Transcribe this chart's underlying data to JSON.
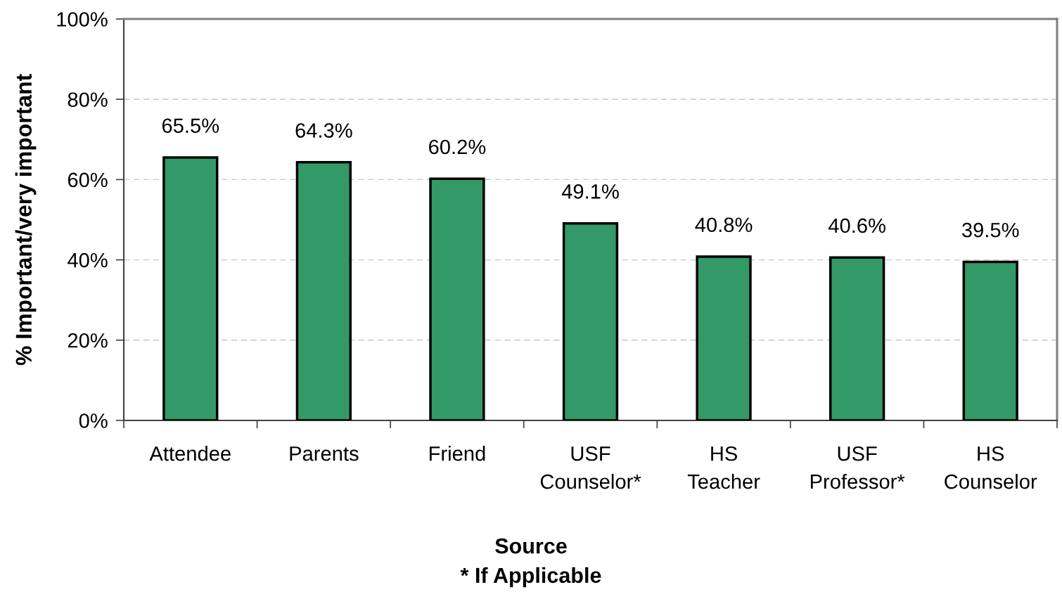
{
  "chart_data": {
    "type": "bar",
    "categories": [
      "Attendee",
      "Parents",
      "Friend",
      "USF\nCounselor*",
      "HS\nTeacher",
      "USF\nProfessor*",
      "HS\nCounselor"
    ],
    "values": [
      65.5,
      64.3,
      60.2,
      49.1,
      40.8,
      40.6,
      39.5
    ],
    "value_labels": [
      "65.5%",
      "64.3%",
      "60.2%",
      "49.1%",
      "40.8%",
      "40.6%",
      "39.5%"
    ],
    "color": "#339966",
    "xlabel": "Source\n* If Applicable",
    "ylabel": "% Important/very important",
    "ylim": [
      0,
      100
    ],
    "yticks": [
      {
        "value": 0,
        "label": "0%"
      },
      {
        "value": 20,
        "label": "20%"
      },
      {
        "value": 40,
        "label": "40%"
      },
      {
        "value": 60,
        "label": "60%"
      },
      {
        "value": 80,
        "label": "80%"
      },
      {
        "value": 100,
        "label": "100%"
      }
    ],
    "grid": "y"
  }
}
